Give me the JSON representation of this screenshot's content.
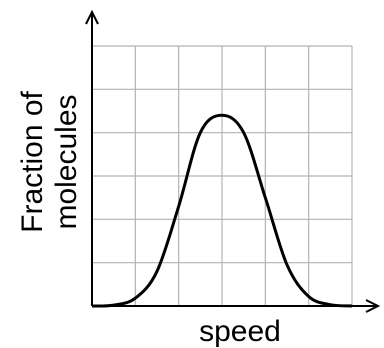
{
  "chart_data": {
    "type": "line",
    "title": "",
    "xlabel": "speed",
    "ylabel": [
      "Fraction of",
      "molecules"
    ],
    "grid": true,
    "grid_columns": 6,
    "grid_rows": 6,
    "xlim": [
      0,
      6
    ],
    "ylim": [
      0,
      6
    ],
    "x_ticks": false,
    "y_ticks": false,
    "series": [
      {
        "x": [
          0,
          0.5,
          1.0,
          1.5,
          2.0,
          2.5,
          3.0,
          3.5,
          4.0,
          4.5,
          5.0,
          5.5,
          6.0
        ],
        "y": [
          0.0,
          0.02,
          0.18,
          0.8,
          2.3,
          4.0,
          4.4,
          4.0,
          2.5,
          0.95,
          0.22,
          0.03,
          0.0
        ]
      }
    ],
    "colors": {
      "curve": "#000000",
      "grid": "#b3b3b3",
      "axis": "#000000"
    }
  }
}
